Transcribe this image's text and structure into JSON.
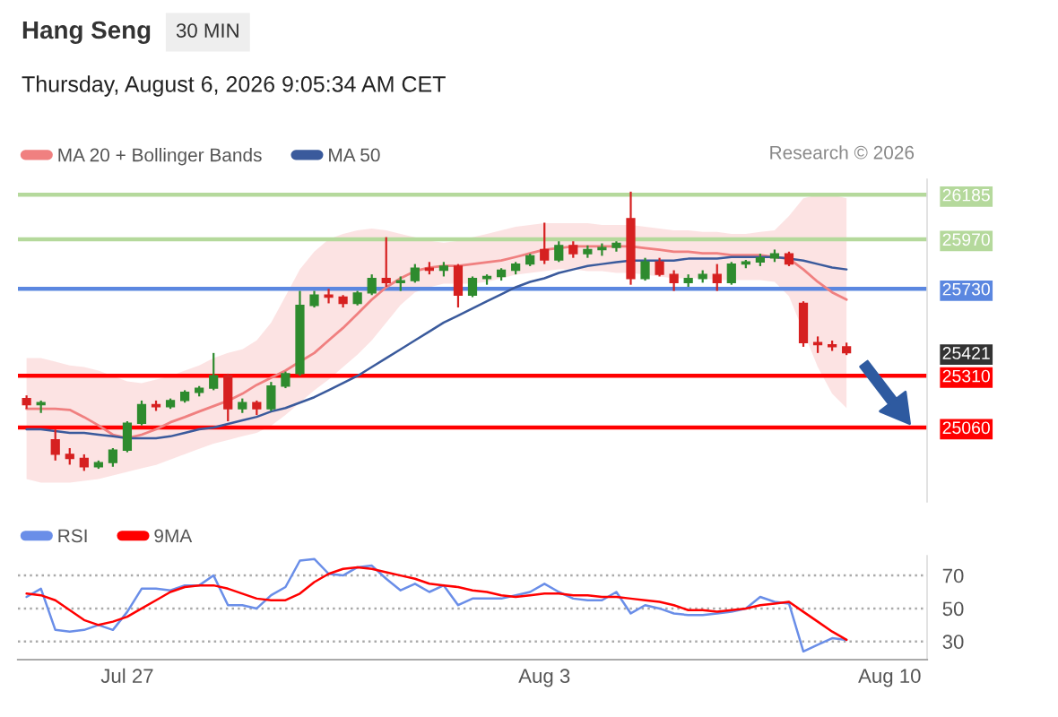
{
  "chart_data": [
    {
      "type": "candlestick",
      "title": "Hang Seng",
      "subtitle": "30 MIN",
      "annotations": [
        "Thursday, August 6, 2026 9:05:34 AM CET",
        "Research © 2026"
      ],
      "categories": [
        null,
        null,
        null,
        null,
        null,
        null,
        null,
        null,
        null,
        null,
        null,
        null,
        null,
        null,
        null,
        null,
        null,
        null,
        null,
        null,
        null,
        null,
        null,
        null,
        null,
        null,
        null,
        null,
        null,
        null,
        null,
        null,
        null,
        null,
        null,
        null,
        null,
        null,
        null,
        null,
        null,
        null,
        null,
        null,
        null,
        null,
        null,
        null,
        null,
        null,
        null,
        null,
        null,
        null,
        null,
        null,
        null,
        null,
        null,
        null,
        null,
        null,
        null
      ],
      "ohlc": [
        [
          25200,
          25215,
          25150,
          25170
        ],
        [
          25170,
          25190,
          25130,
          25180
        ],
        [
          25000,
          25050,
          24900,
          24930
        ],
        [
          24930,
          24960,
          24880,
          24910
        ],
        [
          24910,
          24930,
          24850,
          24870
        ],
        [
          24870,
          24900,
          24860,
          24890
        ],
        [
          24890,
          24960,
          24870,
          24950
        ],
        [
          24950,
          25090,
          24940,
          25080
        ],
        [
          25080,
          25190,
          25070,
          25170
        ],
        [
          25170,
          25190,
          25140,
          25160
        ],
        [
          25160,
          25200,
          25150,
          25190
        ],
        [
          25190,
          25240,
          25180,
          25230
        ],
        [
          25230,
          25260,
          25210,
          25250
        ],
        [
          25250,
          25420,
          25240,
          25310
        ],
        [
          25310,
          25320,
          25090,
          25150
        ],
        [
          25150,
          25200,
          25130,
          25180
        ],
        [
          25180,
          25190,
          25120,
          25150
        ],
        [
          25150,
          25280,
          25140,
          25260
        ],
        [
          25260,
          25330,
          25250,
          25320
        ],
        [
          25320,
          25720,
          25310,
          25650
        ],
        [
          25650,
          25720,
          25640,
          25700
        ],
        [
          25700,
          25730,
          25660,
          25690
        ],
        [
          25690,
          25700,
          25640,
          25660
        ],
        [
          25660,
          25720,
          25650,
          25710
        ],
        [
          25710,
          25800,
          25700,
          25780
        ],
        [
          25780,
          25980,
          25740,
          25760
        ],
        [
          25760,
          25790,
          25720,
          25770
        ],
        [
          25770,
          25850,
          25760,
          25830
        ],
        [
          25830,
          25860,
          25800,
          25820
        ],
        [
          25820,
          25860,
          25790,
          25840
        ],
        [
          25840,
          25850,
          25640,
          25700
        ],
        [
          25700,
          25790,
          25690,
          25780
        ],
        [
          25780,
          25800,
          25750,
          25790
        ],
        [
          25790,
          25830,
          25770,
          25820
        ],
        [
          25820,
          25860,
          25800,
          25850
        ],
        [
          25850,
          25900,
          25840,
          25890
        ],
        [
          25920,
          26050,
          25850,
          25870
        ],
        [
          25870,
          25960,
          25860,
          25940
        ],
        [
          25940,
          25960,
          25880,
          25900
        ],
        [
          25900,
          25940,
          25880,
          25920
        ],
        [
          25920,
          25950,
          25890,
          25930
        ],
        [
          25930,
          25960,
          25910,
          25950
        ],
        [
          26070,
          26200,
          25750,
          25780
        ],
        [
          25780,
          25880,
          25770,
          25860
        ],
        [
          25860,
          25880,
          25790,
          25800
        ],
        [
          25800,
          25820,
          25720,
          25760
        ],
        [
          25760,
          25800,
          25740,
          25780
        ],
        [
          25780,
          25820,
          25760,
          25800
        ],
        [
          25800,
          25850,
          25720,
          25760
        ],
        [
          25760,
          25860,
          25750,
          25850
        ],
        [
          25850,
          25870,
          25830,
          25860
        ],
        [
          25860,
          25900,
          25840,
          25880
        ],
        [
          25880,
          25920,
          25860,
          25900
        ],
        [
          25900,
          25910,
          25840,
          25850
        ],
        [
          25660,
          25670,
          25450,
          25470
        ],
        [
          25470,
          25500,
          25420,
          25460
        ],
        [
          25460,
          25480,
          25430,
          25450
        ],
        [
          25450,
          25470,
          25410,
          25421
        ],
        null,
        null,
        null,
        null,
        null
      ],
      "series": [
        {
          "name": "MA 20 + Bollinger Bands",
          "type": "line",
          "color": "#f08080",
          "values": [
            25150,
            25150,
            25150,
            25145,
            25110,
            25070,
            25025,
            25008,
            25025,
            25051,
            25085,
            25110,
            25137,
            25163,
            25189,
            25223,
            25266,
            25300,
            25335,
            25378,
            25420,
            25481,
            25541,
            25609,
            25678,
            25738,
            25781,
            25816,
            25833,
            25841,
            25841,
            25850,
            25859,
            25867,
            25884,
            25902,
            25919,
            25927,
            25936,
            25936,
            25936,
            25936,
            25936,
            25927,
            25919,
            25910,
            25910,
            25902,
            25902,
            25893,
            25893,
            25893,
            25884,
            25876,
            25824,
            25764,
            25713,
            25678,
            null,
            null,
            null,
            null,
            null
          ],
          "upper": [
            25395,
            25395,
            25378,
            25360,
            25352,
            25335,
            25309,
            25283,
            25274,
            25292,
            25309,
            25335,
            25360,
            25395,
            25420,
            25438,
            25481,
            25567,
            25695,
            25824,
            25910,
            25970,
            25996,
            26013,
            26022,
            26013,
            25996,
            25979,
            25962,
            25953,
            25962,
            25979,
            25996,
            26013,
            26030,
            26039,
            26048,
            26048,
            26048,
            26048,
            26039,
            26039,
            26039,
            26030,
            26022,
            26013,
            26013,
            26005,
            26005,
            25996,
            25996,
            26005,
            26013,
            26082,
            26168,
            26185,
            26185,
            26168,
            null,
            null,
            null,
            null,
            null
          ],
          "lower": [
            24811,
            24793,
            24793,
            24793,
            24802,
            24811,
            24828,
            24845,
            24862,
            24879,
            24905,
            24931,
            24957,
            24982,
            24999,
            25017,
            25034,
            25068,
            25120,
            25180,
            25240,
            25292,
            25352,
            25412,
            25481,
            25567,
            25652,
            25713,
            25738,
            25755,
            25755,
            25755,
            25764,
            25781,
            25798,
            25807,
            25816,
            25824,
            25824,
            25816,
            25816,
            25807,
            25807,
            25798,
            25790,
            25781,
            25781,
            25781,
            25772,
            25772,
            25772,
            25772,
            25764,
            25695,
            25524,
            25352,
            25223,
            25154,
            null,
            null,
            null,
            null,
            null
          ]
        },
        {
          "name": "MA 50",
          "type": "line",
          "color": "#3a5a9c",
          "values": [
            25051,
            25051,
            25042,
            25034,
            25034,
            25025,
            25017,
            25008,
            25008,
            25008,
            25017,
            25034,
            25051,
            25060,
            25077,
            25094,
            25111,
            25137,
            25154,
            25180,
            25206,
            25240,
            25275,
            25309,
            25352,
            25395,
            25438,
            25481,
            25524,
            25567,
            25601,
            25635,
            25670,
            25704,
            25738,
            25764,
            25781,
            25807,
            25824,
            25841,
            25850,
            25859,
            25867,
            25867,
            25867,
            25867,
            25876,
            25876,
            25876,
            25884,
            25884,
            25884,
            25884,
            25876,
            25867,
            25850,
            25833,
            25824,
            null,
            null,
            null,
            null,
            null
          ]
        }
      ],
      "ylim": [
        24700,
        26260
      ],
      "yticks": [
        25060,
        25310,
        25421,
        25730,
        25970,
        26185
      ],
      "ref_lines": [
        {
          "axis": "y",
          "value": 26185,
          "color": "#b5d99c"
        },
        {
          "axis": "y",
          "value": 25970,
          "color": "#b5d99c"
        },
        {
          "axis": "y",
          "value": 25730,
          "color": "#5b87e0"
        },
        {
          "axis": "y",
          "value": 25310,
          "color": "#ff0000"
        },
        {
          "axis": "y",
          "value": 25060,
          "color": "#ff0000"
        }
      ],
      "legend": "top left",
      "tick_labels": "y",
      "grid": false
    },
    {
      "type": "line",
      "categories": [
        null,
        null,
        null,
        null,
        null,
        null,
        null,
        "Jul 27",
        null,
        null,
        null,
        null,
        null,
        null,
        null,
        null,
        null,
        null,
        null,
        null,
        null,
        null,
        null,
        null,
        null,
        null,
        null,
        null,
        null,
        null,
        null,
        null,
        null,
        null,
        null,
        null,
        "Aug 3",
        null,
        null,
        null,
        null,
        null,
        null,
        null,
        null,
        null,
        null,
        null,
        null,
        null,
        null,
        null,
        null,
        null,
        null,
        null,
        null,
        null,
        null,
        null,
        "Aug 10",
        null,
        null
      ],
      "series": [
        {
          "name": "RSI",
          "color": "#6a8ee8",
          "values": [
            57,
            62,
            37,
            36,
            37,
            40,
            37,
            48,
            62,
            62,
            61,
            64,
            64,
            70,
            52,
            52,
            50,
            58,
            63,
            79,
            80,
            71,
            70,
            75,
            76,
            68,
            61,
            65,
            60,
            64,
            52,
            56,
            56,
            56,
            58,
            60,
            65,
            60,
            56,
            55,
            55,
            60,
            47,
            52,
            50,
            47,
            46,
            46,
            47,
            48,
            50,
            57,
            54,
            53,
            24,
            28,
            32,
            31,
            null,
            null,
            null,
            null,
            null
          ]
        },
        {
          "name": "9MA",
          "color": "#ff0000",
          "values": [
            59,
            58,
            55,
            49,
            43,
            40,
            42,
            45,
            50,
            55,
            60,
            63,
            64,
            64,
            62,
            59,
            56,
            55,
            55,
            59,
            66,
            71,
            74,
            75,
            74,
            72,
            70,
            68,
            65,
            64,
            63,
            61,
            60,
            58,
            57,
            58,
            59,
            59,
            58,
            58,
            57,
            57,
            56,
            55,
            54,
            52,
            49,
            49,
            48,
            49,
            50,
            52,
            53,
            54,
            48,
            42,
            36,
            31,
            null,
            null,
            null,
            null,
            null
          ]
        }
      ],
      "ylim": [
        19,
        82
      ],
      "yticks": [
        30,
        50,
        70
      ],
      "grid": "y",
      "legend": "top left"
    }
  ]
}
